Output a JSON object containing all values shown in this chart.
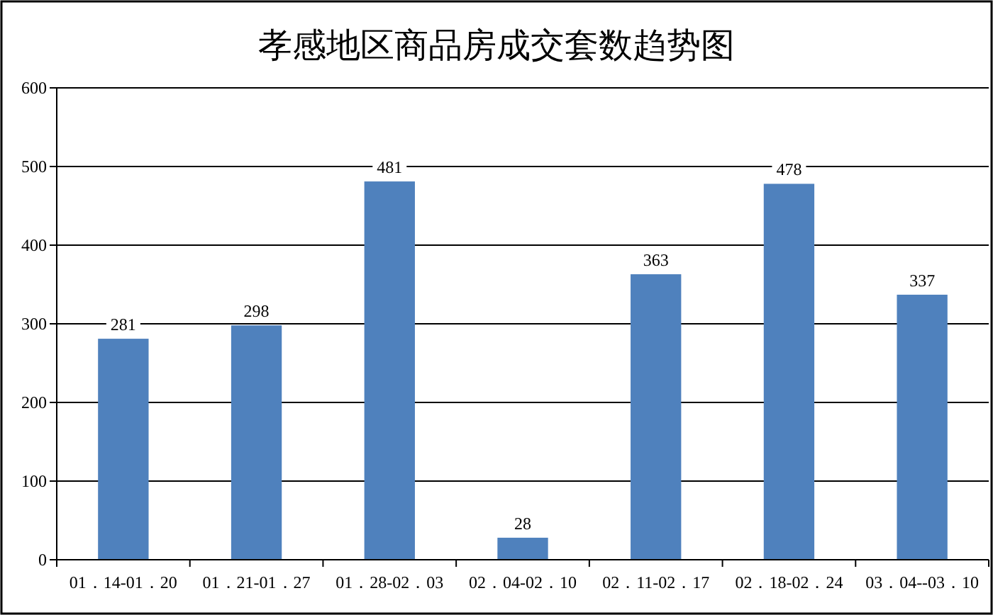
{
  "chart_data": {
    "type": "bar",
    "title": "孝感地区商品房成交套数趋势图",
    "categories": [
      "01．14-01．20",
      "01．21-01．27",
      "01．28-02．03",
      "02．04-02．10",
      "02．11-02．17",
      "02．18-02．24",
      "03．04--03．10"
    ],
    "values": [
      281,
      298,
      481,
      28,
      363,
      478,
      337
    ],
    "color": "#4f81bd",
    "ylim": [
      0,
      600
    ],
    "yticks": [
      0,
      100,
      200,
      300,
      400,
      500,
      600
    ],
    "grid": "y",
    "data_labels": true
  }
}
